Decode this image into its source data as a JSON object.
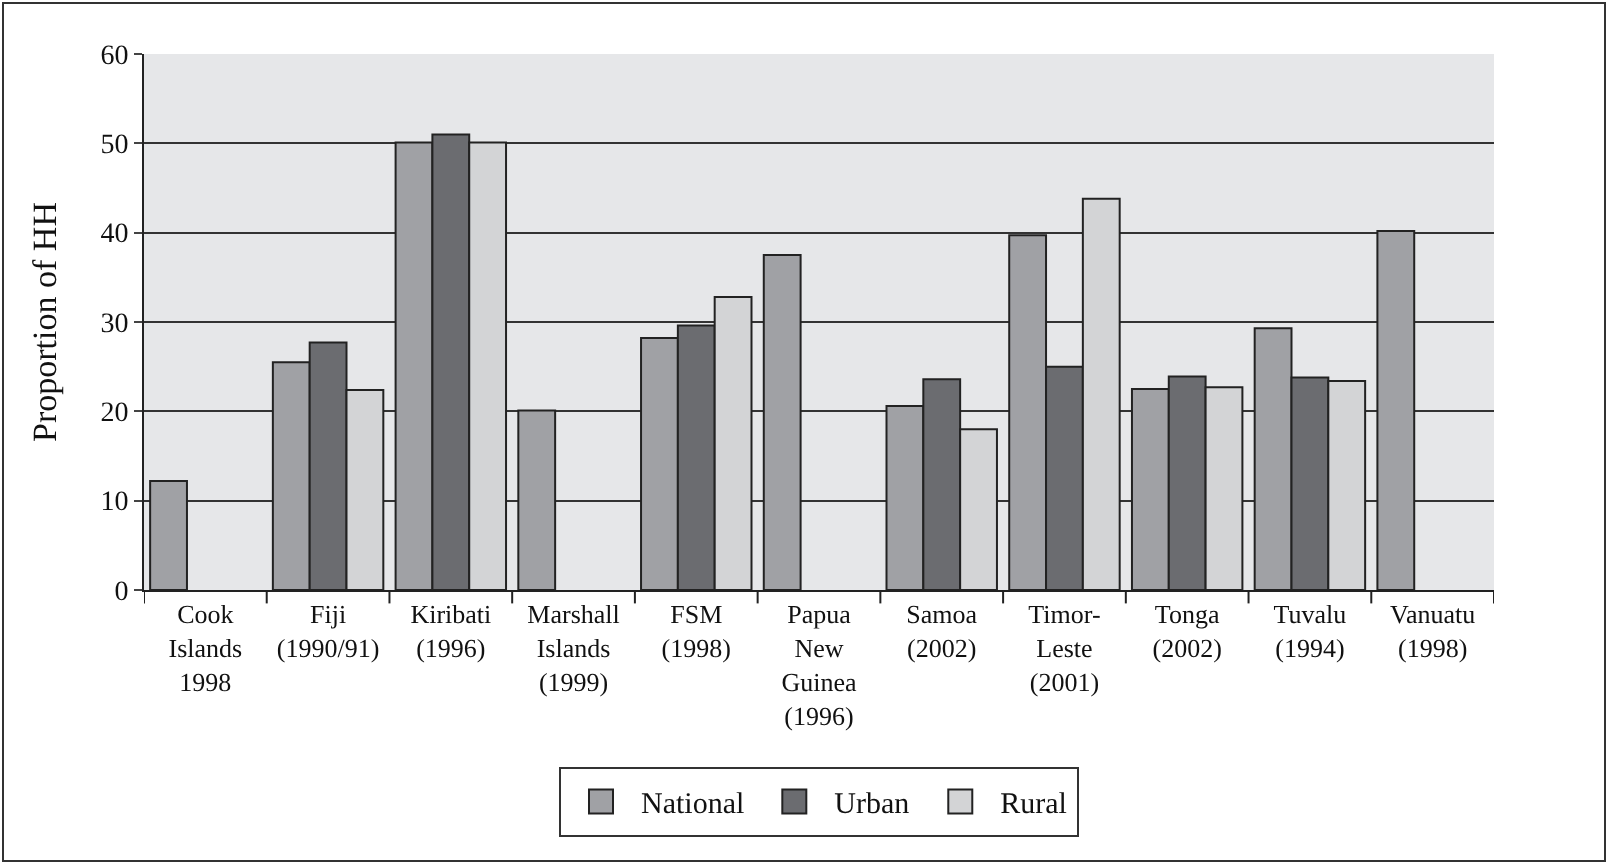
{
  "chart_data": {
    "type": "bar",
    "ylabel": "Proportion of HH",
    "categories": [
      "Cook\nIslands\n1998",
      "Fiji\n(1990/91)",
      "Kiribati\n(1996)",
      "Marshall\nIslands\n(1999)",
      "FSM\n(1998)",
      "Papua\nNew\nGuinea\n(1996)",
      "Samoa\n(2002)",
      "Timor-\nLeste\n(2001)",
      "Tonga\n(2002)",
      "Tuvalu\n(1994)",
      "Vanuatu\n(1998)"
    ],
    "series": [
      {
        "name": "National",
        "color": "#a0a1a5",
        "values": [
          12.2,
          25.5,
          50.1,
          20.1,
          28.2,
          37.5,
          20.6,
          39.7,
          22.5,
          29.3,
          40.2
        ]
      },
      {
        "name": "Urban",
        "color": "#6b6c70",
        "values": [
          null,
          27.7,
          51.0,
          null,
          29.6,
          null,
          23.6,
          25.0,
          23.9,
          23.8,
          null
        ]
      },
      {
        "name": "Rural",
        "color": "#d3d4d6",
        "values": [
          null,
          22.4,
          50.1,
          null,
          32.8,
          null,
          18.0,
          43.8,
          22.7,
          23.4,
          null
        ]
      }
    ],
    "ylim": [
      0,
      60
    ],
    "yticks": [
      0,
      10,
      20,
      30,
      40,
      50,
      60
    ],
    "grid": "y",
    "legend": "bottom"
  }
}
